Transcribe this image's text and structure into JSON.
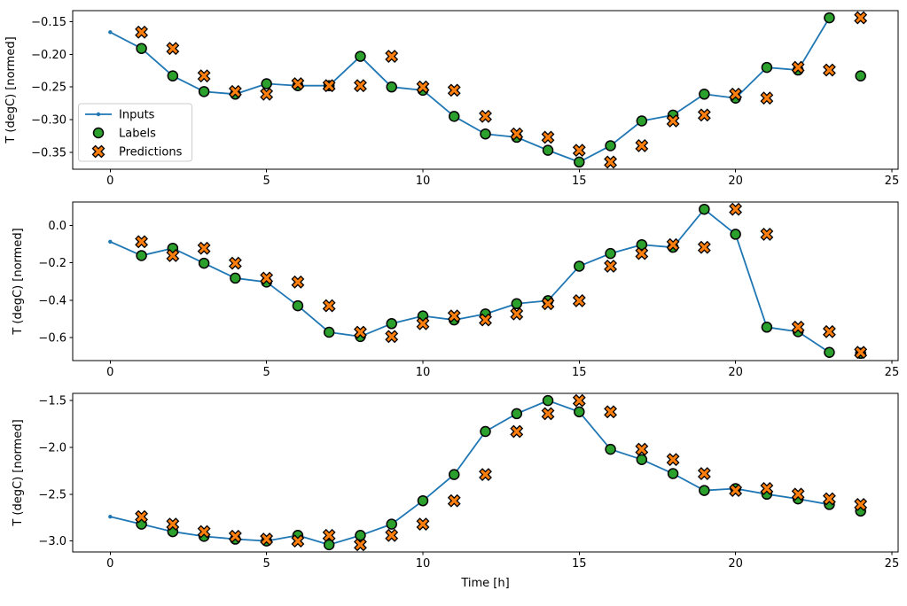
{
  "figure": {
    "background": "#ffffff",
    "xlabel": "Time [h]",
    "x_ticks": [
      0,
      5,
      10,
      15,
      20,
      25
    ],
    "xlim": [
      -1.2,
      25.2
    ],
    "colors": {
      "inputs": "#1f77b4",
      "labels": "#2ca02c",
      "predictions": "#ff7f0e",
      "marker_edge": "#000000",
      "spine": "#000000",
      "legend_border": "#cccccc",
      "legend_fill": "rgba(255,255,255,0.8)"
    },
    "legend": {
      "entries": [
        {
          "label": "Inputs",
          "marker": "line-dot",
          "color": "#1f77b4"
        },
        {
          "label": "Labels",
          "marker": "circle",
          "color": "#2ca02c"
        },
        {
          "label": "Predictions",
          "marker": "X",
          "color": "#ff7f0e"
        }
      ]
    }
  },
  "chart_data": [
    {
      "type": "line+scatter",
      "ylabel": "T (degC) [normed]",
      "ylim": [
        -0.376,
        -0.133
      ],
      "ytick_values": [
        -0.15,
        -0.2,
        -0.25,
        -0.3,
        -0.35
      ],
      "ytick_labels": [
        "−0.15",
        "−0.20",
        "−0.25",
        "−0.30",
        "−0.35"
      ],
      "series": [
        {
          "name": "Inputs",
          "style": "line",
          "x": [
            0,
            1,
            2,
            3,
            4,
            5,
            6,
            7,
            8,
            9,
            10,
            11,
            12,
            13,
            14,
            15,
            16,
            17,
            18,
            19,
            20,
            21,
            22,
            23
          ],
          "y": [
            -0.166,
            -0.191,
            -0.233,
            -0.257,
            -0.261,
            -0.245,
            -0.248,
            -0.248,
            -0.203,
            -0.25,
            -0.255,
            -0.295,
            -0.322,
            -0.327,
            -0.347,
            -0.365,
            -0.34,
            -0.302,
            -0.293,
            -0.261,
            -0.267,
            -0.22,
            -0.224,
            -0.144
          ]
        },
        {
          "name": "Labels",
          "style": "scatter-circle",
          "x": [
            1,
            2,
            3,
            4,
            5,
            6,
            7,
            8,
            9,
            10,
            11,
            12,
            13,
            14,
            15,
            16,
            17,
            18,
            19,
            20,
            21,
            22,
            23,
            24
          ],
          "y": [
            -0.191,
            -0.233,
            -0.257,
            -0.261,
            -0.245,
            -0.248,
            -0.248,
            -0.203,
            -0.25,
            -0.255,
            -0.295,
            -0.322,
            -0.327,
            -0.347,
            -0.365,
            -0.34,
            -0.302,
            -0.293,
            -0.261,
            -0.267,
            -0.22,
            -0.224,
            -0.144,
            -0.233
          ]
        },
        {
          "name": "Predictions",
          "style": "scatter-X",
          "x": [
            1,
            2,
            3,
            4,
            5,
            6,
            7,
            8,
            9,
            10,
            11,
            12,
            13,
            14,
            15,
            16,
            17,
            18,
            19,
            20,
            21,
            22,
            23,
            24
          ],
          "y": [
            -0.166,
            -0.191,
            -0.233,
            -0.257,
            -0.261,
            -0.245,
            -0.248,
            -0.248,
            -0.203,
            -0.25,
            -0.255,
            -0.295,
            -0.322,
            -0.327,
            -0.347,
            -0.365,
            -0.34,
            -0.302,
            -0.293,
            -0.261,
            -0.267,
            -0.22,
            -0.224,
            -0.144
          ]
        }
      ]
    },
    {
      "type": "line+scatter",
      "ylabel": "T (degC) [normed]",
      "ylim": [
        -0.724,
        0.126
      ],
      "ytick_values": [
        0.0,
        -0.2,
        -0.4,
        -0.6
      ],
      "ytick_labels": [
        "0.0",
        "−0.2",
        "−0.4",
        "−0.6"
      ],
      "series": [
        {
          "name": "Inputs",
          "style": "line",
          "x": [
            0,
            1,
            2,
            3,
            4,
            5,
            6,
            7,
            8,
            9,
            10,
            11,
            12,
            13,
            14,
            15,
            16,
            17,
            18,
            19,
            20,
            21,
            22,
            23
          ],
          "y": [
            -0.087,
            -0.161,
            -0.122,
            -0.202,
            -0.282,
            -0.303,
            -0.43,
            -0.572,
            -0.595,
            -0.526,
            -0.485,
            -0.506,
            -0.474,
            -0.419,
            -0.403,
            -0.218,
            -0.15,
            -0.103,
            -0.117,
            0.087,
            -0.047,
            -0.545,
            -0.569,
            -0.68
          ]
        },
        {
          "name": "Labels",
          "style": "scatter-circle",
          "x": [
            1,
            2,
            3,
            4,
            5,
            6,
            7,
            8,
            9,
            10,
            11,
            12,
            13,
            14,
            15,
            16,
            17,
            18,
            19,
            20,
            21,
            22,
            23,
            24
          ],
          "y": [
            -0.161,
            -0.122,
            -0.202,
            -0.282,
            -0.303,
            -0.43,
            -0.572,
            -0.595,
            -0.526,
            -0.485,
            -0.506,
            -0.474,
            -0.419,
            -0.403,
            -0.218,
            -0.15,
            -0.103,
            -0.117,
            0.087,
            -0.047,
            -0.545,
            -0.569,
            -0.68,
            -0.685
          ]
        },
        {
          "name": "Predictions",
          "style": "scatter-X",
          "x": [
            1,
            2,
            3,
            4,
            5,
            6,
            7,
            8,
            9,
            10,
            11,
            12,
            13,
            14,
            15,
            16,
            17,
            18,
            19,
            20,
            21,
            22,
            23,
            24
          ],
          "y": [
            -0.087,
            -0.161,
            -0.122,
            -0.202,
            -0.282,
            -0.303,
            -0.43,
            -0.572,
            -0.595,
            -0.526,
            -0.485,
            -0.506,
            -0.474,
            -0.419,
            -0.403,
            -0.218,
            -0.15,
            -0.103,
            -0.117,
            0.087,
            -0.047,
            -0.545,
            -0.569,
            -0.68
          ]
        }
      ]
    },
    {
      "type": "line+scatter",
      "ylabel": "T (degC) [normed]",
      "ylim": [
        -3.117,
        -1.423
      ],
      "ytick_values": [
        -1.5,
        -2.0,
        -2.5,
        -3.0
      ],
      "ytick_labels": [
        "−1.5",
        "−2.0",
        "−2.5",
        "−3.0"
      ],
      "series": [
        {
          "name": "Inputs",
          "style": "line",
          "x": [
            0,
            1,
            2,
            3,
            4,
            5,
            6,
            7,
            8,
            9,
            10,
            11,
            12,
            13,
            14,
            15,
            16,
            17,
            18,
            19,
            20,
            21,
            22,
            23
          ],
          "y": [
            -2.74,
            -2.82,
            -2.9,
            -2.95,
            -2.98,
            -3.0,
            -2.94,
            -3.04,
            -2.94,
            -2.82,
            -2.57,
            -2.29,
            -1.83,
            -1.64,
            -1.5,
            -1.62,
            -2.02,
            -2.13,
            -2.28,
            -2.46,
            -2.44,
            -2.5,
            -2.55,
            -2.61
          ]
        },
        {
          "name": "Labels",
          "style": "scatter-circle",
          "x": [
            1,
            2,
            3,
            4,
            5,
            6,
            7,
            8,
            9,
            10,
            11,
            12,
            13,
            14,
            15,
            16,
            17,
            18,
            19,
            20,
            21,
            22,
            23,
            24
          ],
          "y": [
            -2.82,
            -2.9,
            -2.95,
            -2.98,
            -3.0,
            -2.94,
            -3.04,
            -2.94,
            -2.82,
            -2.57,
            -2.29,
            -1.83,
            -1.64,
            -1.5,
            -1.62,
            -2.02,
            -2.13,
            -2.28,
            -2.46,
            -2.44,
            -2.5,
            -2.55,
            -2.61,
            -2.68
          ]
        },
        {
          "name": "Predictions",
          "style": "scatter-X",
          "x": [
            1,
            2,
            3,
            4,
            5,
            6,
            7,
            8,
            9,
            10,
            11,
            12,
            13,
            14,
            15,
            16,
            17,
            18,
            19,
            20,
            21,
            22,
            23,
            24
          ],
          "y": [
            -2.74,
            -2.82,
            -2.9,
            -2.95,
            -2.98,
            -3.0,
            -2.94,
            -3.04,
            -2.94,
            -2.82,
            -2.57,
            -2.29,
            -1.83,
            -1.64,
            -1.5,
            -1.62,
            -2.02,
            -2.13,
            -2.28,
            -2.46,
            -2.44,
            -2.5,
            -2.55,
            -2.61
          ]
        }
      ]
    }
  ]
}
